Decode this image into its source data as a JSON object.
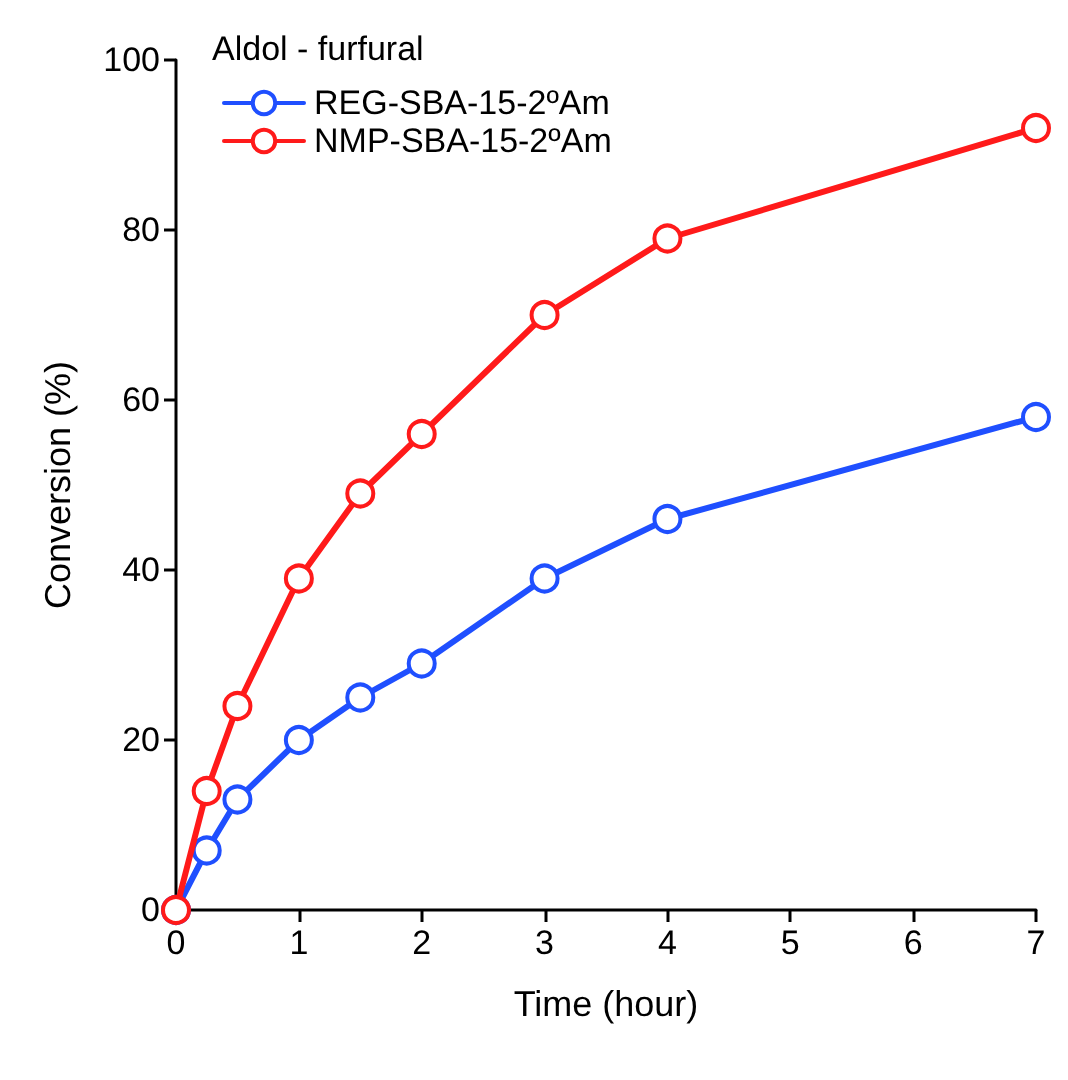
{
  "chart_data": {
    "type": "line",
    "xlabel": "Time (hour)",
    "ylabel": "Conversion (%)",
    "legend_title": "Aldol - furfural",
    "x": [
      0,
      0.25,
      0.5,
      1,
      1.5,
      2,
      3,
      4,
      7
    ],
    "series": [
      {
        "name": "REG-SBA-15-2ºAm",
        "color": "#1f4fff",
        "values": [
          0,
          7,
          13,
          20,
          25,
          29,
          39,
          46,
          58
        ]
      },
      {
        "name": "NMP-SBA-15-2ºAm",
        "color": "#ff1a1a",
        "values": [
          0,
          14,
          24,
          39,
          49,
          56,
          70,
          79,
          92
        ]
      }
    ],
    "xlim": [
      0,
      7
    ],
    "xticks": [
      0,
      1,
      2,
      3,
      4,
      5,
      6,
      7
    ],
    "ylim": [
      0,
      100
    ],
    "yticks": [
      0,
      20,
      40,
      60,
      80,
      100
    ],
    "grid": false,
    "legend": "top left",
    "marker": "circle",
    "line_style": "solid"
  }
}
